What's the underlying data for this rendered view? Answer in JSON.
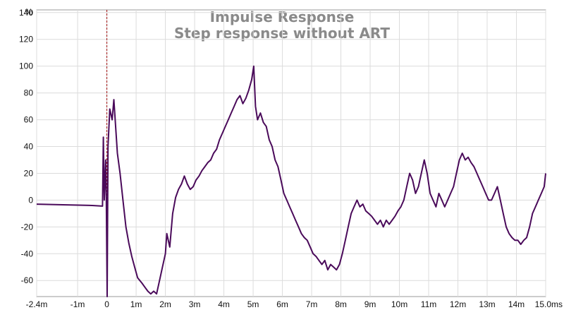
{
  "chart_data": {
    "type": "line",
    "title": "Impulse Response",
    "subtitle": "Step response without ART",
    "ylabel": "%",
    "xunit": "ms",
    "xlim": [
      -2.4,
      15.0
    ],
    "ylim": [
      -72,
      142
    ],
    "grid": true,
    "xticks": [
      {
        "v": -2.4,
        "label": "-2.4m"
      },
      {
        "v": -1,
        "label": "-1m"
      },
      {
        "v": 0,
        "label": "0"
      },
      {
        "v": 1,
        "label": "1m"
      },
      {
        "v": 2,
        "label": "2m"
      },
      {
        "v": 3,
        "label": "3m"
      },
      {
        "v": 4,
        "label": "4m"
      },
      {
        "v": 5,
        "label": "5m"
      },
      {
        "v": 6,
        "label": "6m"
      },
      {
        "v": 7,
        "label": "7m"
      },
      {
        "v": 8,
        "label": "8m"
      },
      {
        "v": 9,
        "label": "9m"
      },
      {
        "v": 10,
        "label": "10m"
      },
      {
        "v": 11,
        "label": "11m"
      },
      {
        "v": 12,
        "label": "12m"
      },
      {
        "v": 13,
        "label": "13m"
      },
      {
        "v": 14,
        "label": "14m"
      },
      {
        "v": 15,
        "label": "15.0ms"
      }
    ],
    "yticks": [
      {
        "v": 140,
        "label": "140"
      },
      {
        "v": 120,
        "label": "120"
      },
      {
        "v": 100,
        "label": "100"
      },
      {
        "v": 80,
        "label": "80"
      },
      {
        "v": 60,
        "label": "60"
      },
      {
        "v": 40,
        "label": "40"
      },
      {
        "v": 20,
        "label": "20"
      },
      {
        "v": 0,
        "label": "0"
      },
      {
        "v": -20,
        "label": "-20"
      },
      {
        "v": -40,
        "label": "-40"
      },
      {
        "v": -60,
        "label": "-60"
      }
    ],
    "marker_x": 0,
    "series": [
      {
        "color": "#4a0a5a",
        "points": [
          [
            -2.4,
            -3
          ],
          [
            -1.5,
            -3.5
          ],
          [
            -0.5,
            -4
          ],
          [
            -0.15,
            -4.5
          ],
          [
            -0.12,
            47
          ],
          [
            -0.09,
            0
          ],
          [
            -0.04,
            30
          ],
          [
            -0.02,
            0
          ],
          [
            0.01,
            -72
          ],
          [
            0.04,
            40
          ],
          [
            0.1,
            68
          ],
          [
            0.18,
            60
          ],
          [
            0.24,
            75
          ],
          [
            0.3,
            55
          ],
          [
            0.36,
            35
          ],
          [
            0.45,
            20
          ],
          [
            0.55,
            0
          ],
          [
            0.65,
            -20
          ],
          [
            0.75,
            -32
          ],
          [
            0.85,
            -42
          ],
          [
            0.95,
            -50
          ],
          [
            1.05,
            -58
          ],
          [
            1.2,
            -62
          ],
          [
            1.3,
            -65
          ],
          [
            1.4,
            -68
          ],
          [
            1.5,
            -70
          ],
          [
            1.6,
            -68
          ],
          [
            1.7,
            -70
          ],
          [
            1.8,
            -60
          ],
          [
            1.9,
            -50
          ],
          [
            2.0,
            -40
          ],
          [
            2.05,
            -25
          ],
          [
            2.15,
            -35
          ],
          [
            2.25,
            -10
          ],
          [
            2.35,
            2
          ],
          [
            2.45,
            8
          ],
          [
            2.55,
            12
          ],
          [
            2.65,
            18
          ],
          [
            2.75,
            12
          ],
          [
            2.85,
            8
          ],
          [
            2.95,
            10
          ],
          [
            3.05,
            15
          ],
          [
            3.15,
            18
          ],
          [
            3.25,
            22
          ],
          [
            3.35,
            25
          ],
          [
            3.45,
            28
          ],
          [
            3.55,
            30
          ],
          [
            3.65,
            35
          ],
          [
            3.75,
            38
          ],
          [
            3.85,
            45
          ],
          [
            3.95,
            50
          ],
          [
            4.05,
            55
          ],
          [
            4.15,
            60
          ],
          [
            4.25,
            65
          ],
          [
            4.35,
            70
          ],
          [
            4.45,
            75
          ],
          [
            4.55,
            78
          ],
          [
            4.65,
            72
          ],
          [
            4.75,
            76
          ],
          [
            4.85,
            82
          ],
          [
            4.95,
            90
          ],
          [
            5.02,
            100
          ],
          [
            5.08,
            70
          ],
          [
            5.15,
            60
          ],
          [
            5.25,
            65
          ],
          [
            5.35,
            58
          ],
          [
            5.45,
            55
          ],
          [
            5.55,
            45
          ],
          [
            5.65,
            40
          ],
          [
            5.75,
            30
          ],
          [
            5.85,
            25
          ],
          [
            5.95,
            15
          ],
          [
            6.05,
            5
          ],
          [
            6.15,
            0
          ],
          [
            6.25,
            -5
          ],
          [
            6.35,
            -10
          ],
          [
            6.45,
            -15
          ],
          [
            6.55,
            -20
          ],
          [
            6.65,
            -25
          ],
          [
            6.75,
            -28
          ],
          [
            6.85,
            -30
          ],
          [
            6.95,
            -35
          ],
          [
            7.05,
            -40
          ],
          [
            7.15,
            -42
          ],
          [
            7.25,
            -45
          ],
          [
            7.35,
            -48
          ],
          [
            7.45,
            -45
          ],
          [
            7.55,
            -52
          ],
          [
            7.65,
            -48
          ],
          [
            7.75,
            -50
          ],
          [
            7.85,
            -52
          ],
          [
            7.95,
            -48
          ],
          [
            8.05,
            -40
          ],
          [
            8.15,
            -30
          ],
          [
            8.25,
            -20
          ],
          [
            8.35,
            -10
          ],
          [
            8.45,
            -5
          ],
          [
            8.55,
            0
          ],
          [
            8.65,
            -5
          ],
          [
            8.75,
            -3
          ],
          [
            8.85,
            -8
          ],
          [
            8.95,
            -10
          ],
          [
            9.05,
            -12
          ],
          [
            9.15,
            -15
          ],
          [
            9.25,
            -18
          ],
          [
            9.35,
            -15
          ],
          [
            9.45,
            -20
          ],
          [
            9.55,
            -15
          ],
          [
            9.65,
            -18
          ],
          [
            9.75,
            -15
          ],
          [
            9.85,
            -12
          ],
          [
            9.95,
            -8
          ],
          [
            10.05,
            -5
          ],
          [
            10.15,
            0
          ],
          [
            10.25,
            10
          ],
          [
            10.35,
            20
          ],
          [
            10.45,
            15
          ],
          [
            10.55,
            5
          ],
          [
            10.65,
            10
          ],
          [
            10.75,
            20
          ],
          [
            10.85,
            30
          ],
          [
            10.95,
            20
          ],
          [
            11.05,
            5
          ],
          [
            11.15,
            0
          ],
          [
            11.25,
            -5
          ],
          [
            11.35,
            5
          ],
          [
            11.45,
            0
          ],
          [
            11.55,
            -5
          ],
          [
            11.65,
            0
          ],
          [
            11.75,
            5
          ],
          [
            11.85,
            10
          ],
          [
            11.95,
            20
          ],
          [
            12.05,
            30
          ],
          [
            12.15,
            35
          ],
          [
            12.25,
            30
          ],
          [
            12.35,
            32
          ],
          [
            12.45,
            28
          ],
          [
            12.55,
            25
          ],
          [
            12.65,
            20
          ],
          [
            12.75,
            15
          ],
          [
            12.85,
            10
          ],
          [
            12.95,
            5
          ],
          [
            13.05,
            0
          ],
          [
            13.15,
            0
          ],
          [
            13.25,
            5
          ],
          [
            13.35,
            10
          ],
          [
            13.45,
            0
          ],
          [
            13.55,
            -10
          ],
          [
            13.65,
            -20
          ],
          [
            13.75,
            -25
          ],
          [
            13.85,
            -28
          ],
          [
            13.95,
            -30
          ],
          [
            14.05,
            -30
          ],
          [
            14.15,
            -33
          ],
          [
            14.25,
            -30
          ],
          [
            14.35,
            -28
          ],
          [
            14.45,
            -20
          ],
          [
            14.55,
            -10
          ],
          [
            14.65,
            -5
          ],
          [
            14.75,
            0
          ],
          [
            14.85,
            5
          ],
          [
            14.95,
            10
          ],
          [
            15.0,
            20
          ]
        ]
      }
    ]
  }
}
